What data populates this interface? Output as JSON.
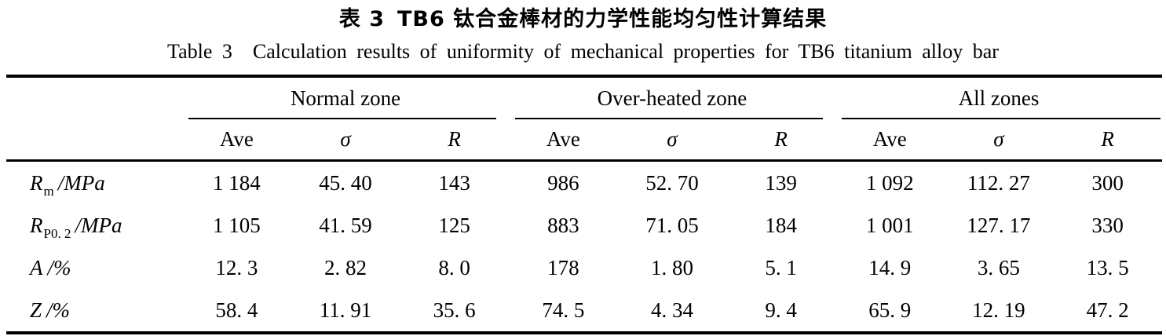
{
  "caption_zh": {
    "label": "表 3",
    "text": "TB6 钛合金棒材的力学性能均匀性计算结果"
  },
  "caption_en": {
    "label": "Table 3",
    "text": "Calculation results of uniformity of mechanical properties for TB6 titanium alloy bar"
  },
  "table": {
    "groups": [
      {
        "label": "Normal zone",
        "columns": [
          "Ave",
          "σ",
          "R"
        ]
      },
      {
        "label": "Over-heated zone",
        "columns": [
          "Ave",
          "σ",
          "R"
        ]
      },
      {
        "label": "All zones",
        "columns": [
          "Ave",
          "σ",
          "R"
        ]
      }
    ],
    "rows": [
      {
        "property": {
          "symbol": "R",
          "subscript": "m",
          "unit": "/MPa"
        },
        "values": [
          "1 184",
          "45. 40",
          "143",
          "986",
          "52. 70",
          "139",
          "1 092",
          "112. 27",
          "300"
        ]
      },
      {
        "property": {
          "symbol": "R",
          "subscript": "P0. 2",
          "unit": "/MPa"
        },
        "values": [
          "1 105",
          "41. 59",
          "125",
          "883",
          "71. 05",
          "184",
          "1 001",
          "127. 17",
          "330"
        ]
      },
      {
        "property": {
          "symbol": "A",
          "subscript": "",
          "unit": "/%"
        },
        "values": [
          "12. 3",
          "2. 82",
          "8. 0",
          "178",
          "1. 80",
          "5. 1",
          "14. 9",
          "3. 65",
          "13. 5"
        ]
      },
      {
        "property": {
          "symbol": "Z",
          "subscript": "",
          "unit": "/%"
        },
        "values": [
          "58. 4",
          "11. 91",
          "35. 6",
          "74. 5",
          "4. 34",
          "9. 4",
          "65. 9",
          "12. 19",
          "47. 2"
        ]
      }
    ]
  },
  "chart_data": {
    "type": "table",
    "title": "Table 3 Calculation results of uniformity of mechanical properties for TB6 titanium alloy bar",
    "title_zh": "表 3 TB6 钛合金棒材的力学性能均匀性计算结果",
    "column_groups": [
      "Normal zone",
      "Over-heated zone",
      "All zones"
    ],
    "columns": [
      "Ave",
      "σ",
      "R",
      "Ave",
      "σ",
      "R",
      "Ave",
      "σ",
      "R"
    ],
    "row_labels": [
      "Rm/MPa",
      "RP0.2/MPa",
      "A/%",
      "Z/%"
    ],
    "values": [
      [
        1184,
        45.4,
        143,
        986,
        52.7,
        139,
        1092,
        112.27,
        300
      ],
      [
        1105,
        41.59,
        125,
        883,
        71.05,
        184,
        1001,
        127.17,
        330
      ],
      [
        12.3,
        2.82,
        8.0,
        178,
        1.8,
        5.1,
        14.9,
        3.65,
        13.5
      ],
      [
        58.4,
        11.91,
        35.6,
        74.5,
        4.34,
        9.4,
        65.9,
        12.19,
        47.2
      ]
    ]
  }
}
